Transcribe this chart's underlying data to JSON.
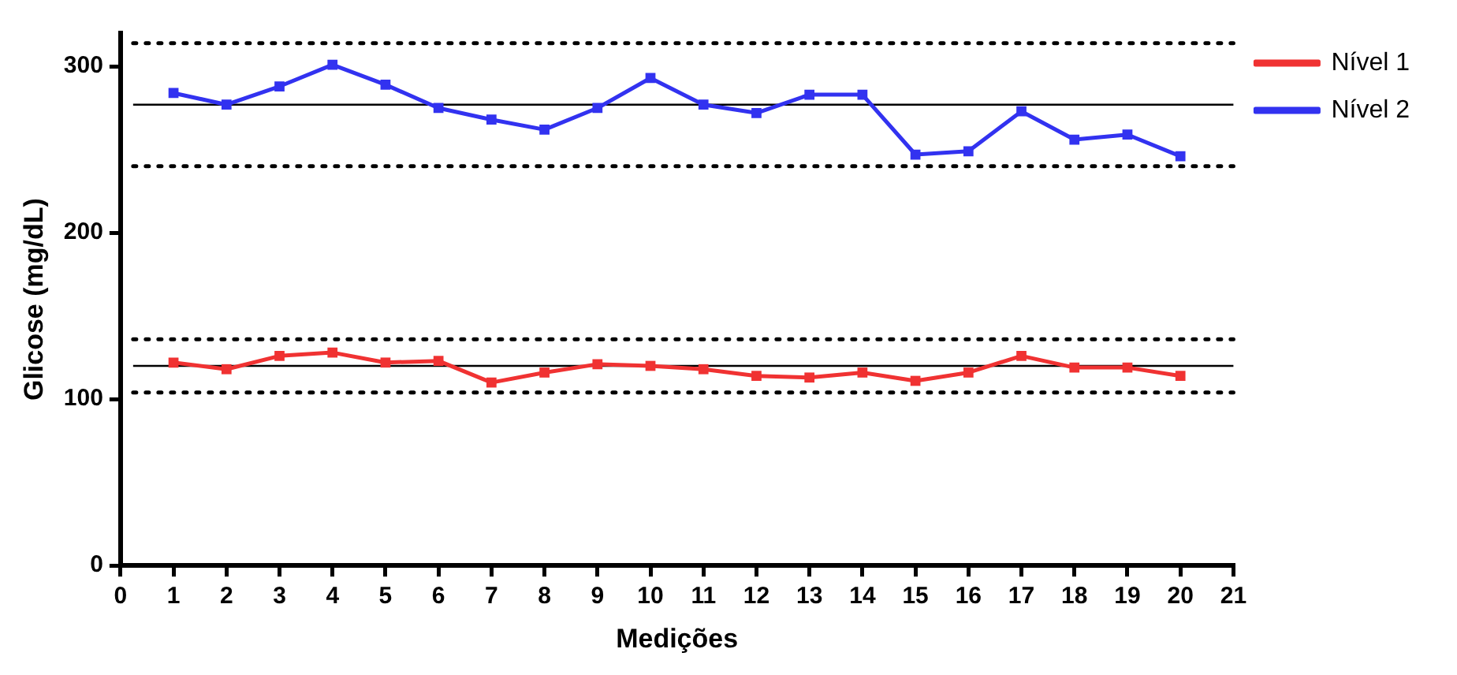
{
  "chart_data": {
    "type": "line",
    "xlabel": "Medições",
    "ylabel": "Glicose (mg/dL)",
    "x": [
      1,
      2,
      3,
      4,
      5,
      6,
      7,
      8,
      9,
      10,
      11,
      12,
      13,
      14,
      15,
      16,
      17,
      18,
      19,
      20
    ],
    "series": [
      {
        "name": "Nível 1",
        "color": "#f03232",
        "values": [
          122,
          118,
          126,
          128,
          122,
          123,
          110,
          116,
          121,
          120,
          118,
          114,
          113,
          116,
          111,
          116,
          126,
          119,
          119,
          114
        ]
      },
      {
        "name": "Nível 2",
        "color": "#3232f0",
        "values": [
          284,
          277,
          288,
          301,
          289,
          275,
          268,
          262,
          275,
          293,
          277,
          272,
          283,
          283,
          247,
          249,
          273,
          256,
          259,
          246
        ]
      }
    ],
    "xlim": [
      0,
      21
    ],
    "xticks": [
      0,
      1,
      2,
      3,
      4,
      5,
      6,
      7,
      8,
      9,
      10,
      11,
      12,
      13,
      14,
      15,
      16,
      17,
      18,
      19,
      20,
      21
    ],
    "ylim": [
      0,
      320
    ],
    "yticks": [
      0,
      100,
      200,
      300
    ],
    "ref_lines": [
      {
        "axis": "y",
        "value": 314,
        "color": "#000000",
        "line_style": "dotted"
      },
      {
        "axis": "y",
        "value": 277,
        "color": "#000000",
        "line_style": "solid"
      },
      {
        "axis": "y",
        "value": 240,
        "color": "#000000",
        "line_style": "dotted"
      },
      {
        "axis": "y",
        "value": 136,
        "color": "#000000",
        "line_style": "dotted"
      },
      {
        "axis": "y",
        "value": 120,
        "color": "#000000",
        "line_style": "solid"
      },
      {
        "axis": "y",
        "value": 104,
        "color": "#000000",
        "line_style": "dotted"
      }
    ],
    "marker": "square",
    "line_style": "solid",
    "grid": false,
    "legend": "top right"
  }
}
